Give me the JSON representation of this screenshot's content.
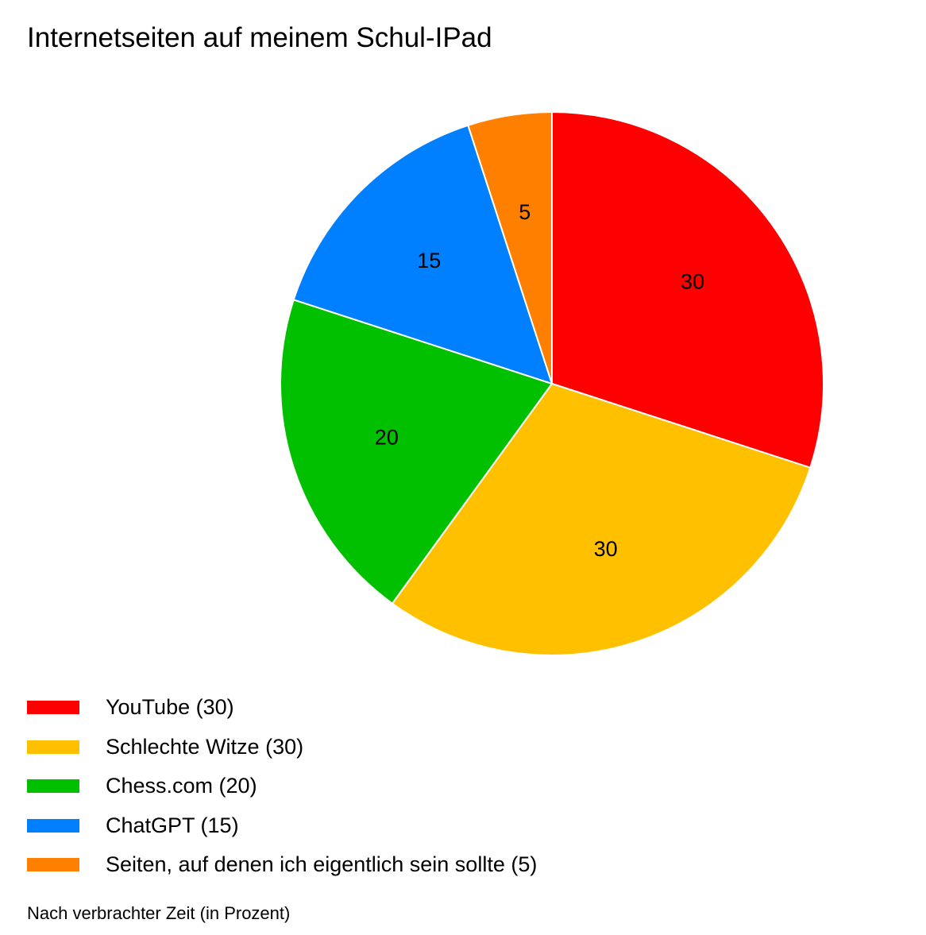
{
  "chart_data": {
    "type": "pie",
    "title": "Internetseiten auf meinem Schul-IPad",
    "subtitle": "Nach verbrachter Zeit (in Prozent)",
    "categories": [
      "YouTube",
      "Schlechte Witze",
      "Chess.com",
      "ChatGPT",
      "Seiten, auf denen ich eigentlich sein sollte"
    ],
    "values": [
      30,
      30,
      20,
      15,
      5
    ],
    "value_labels": [
      "30",
      "30",
      "20",
      "15",
      "5"
    ],
    "colors": [
      "#ff0000",
      "#ffc000",
      "#00c000",
      "#0080ff",
      "#ff8000"
    ],
    "legend_labels": [
      "YouTube  (30)",
      "Schlechte Witze (30)",
      "Chess.com (20)",
      "ChatGPT (15)",
      "Seiten, auf denen ich eigentlich sein sollte (5)"
    ],
    "legend_position": "bottom-left",
    "start": "top, clockwise"
  }
}
